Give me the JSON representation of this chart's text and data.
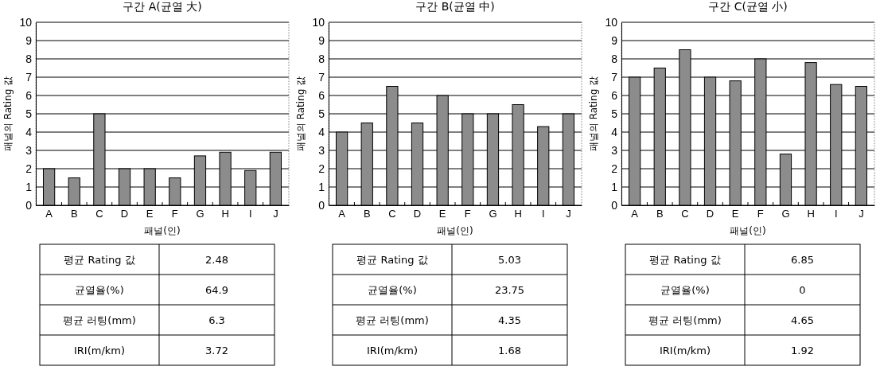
{
  "chart_data": [
    {
      "type": "bar",
      "title": "구간 A(균열 大)",
      "xlabel": "패널(인)",
      "ylabel": "패널의 Rating 값",
      "categories": [
        "A",
        "B",
        "C",
        "D",
        "E",
        "F",
        "G",
        "H",
        "I",
        "J"
      ],
      "values": [
        2,
        1.5,
        5,
        2,
        2,
        1.5,
        2.7,
        2.9,
        1.9,
        2.9
      ],
      "color": "#8c8c8c",
      "ylim": [
        0,
        10
      ],
      "yticks": [
        0,
        1,
        2,
        3,
        4,
        5,
        6,
        7,
        8,
        9,
        10
      ],
      "grid": "y",
      "annotations": [
        "평균 Rating 값",
        "2.48",
        "균열율(%)",
        "64.9",
        "평균 러팅(mm)",
        "6.3",
        "IRI(m/km)",
        "3.72"
      ]
    },
    {
      "type": "bar",
      "title": "구간 B(균열 中)",
      "xlabel": "패널(인)",
      "ylabel": "패널의 Rating 값",
      "categories": [
        "A",
        "B",
        "C",
        "D",
        "E",
        "F",
        "G",
        "H",
        "I",
        "J"
      ],
      "values": [
        4,
        4.5,
        6.5,
        4.5,
        6,
        5,
        5,
        5.5,
        4.3,
        5
      ],
      "color": "#8c8c8c",
      "ylim": [
        0,
        10
      ],
      "yticks": [
        0,
        1,
        2,
        3,
        4,
        5,
        6,
        7,
        8,
        9,
        10
      ],
      "grid": "y",
      "annotations": [
        "평균 Rating 값",
        "5.03",
        "균열율(%)",
        "23.75",
        "평균 러팅(mm)",
        "4.35",
        "IRI(m/km)",
        "1.68"
      ]
    },
    {
      "type": "bar",
      "title": "구간 C(균열 小)",
      "xlabel": "패널(인)",
      "ylabel": "패널의 Rating 값",
      "categories": [
        "A",
        "B",
        "C",
        "D",
        "E",
        "F",
        "G",
        "H",
        "I",
        "J"
      ],
      "values": [
        7,
        7.5,
        8.5,
        7,
        6.8,
        8,
        2.8,
        7.8,
        6.6,
        6.5
      ],
      "color": "#8c8c8c",
      "ylim": [
        0,
        10
      ],
      "yticks": [
        0,
        1,
        2,
        3,
        4,
        5,
        6,
        7,
        8,
        9,
        10
      ],
      "grid": "y",
      "annotations": [
        "평균 Rating 값",
        "6.85",
        "균열율(%)",
        "0",
        "평균 러팅(mm)",
        "4.65",
        "IRI(m/km)",
        "1.92"
      ]
    }
  ]
}
